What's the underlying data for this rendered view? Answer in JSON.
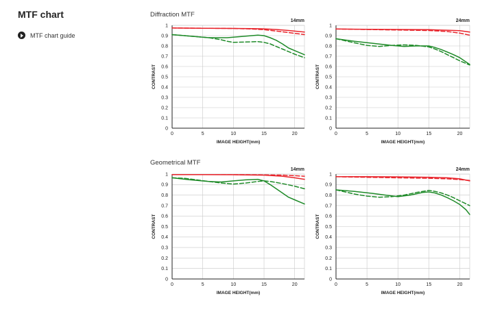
{
  "page": {
    "title": "MTF chart",
    "guide_link": "MTF chart guide"
  },
  "sections": [
    "Diffraction MTF",
    "Geometrical MTF"
  ],
  "colors": {
    "red": "#e8232a",
    "green": "#1e8a28",
    "grid": "#c8c8c8",
    "axis": "#222222"
  },
  "chart_data": [
    {
      "type": "line",
      "section": "Diffraction MTF",
      "focal": "14mm",
      "xlabel": "IMAGE HEIGHT(mm)",
      "ylabel": "CONTRAST",
      "xlim": [
        0,
        21.6
      ],
      "ylim": [
        0,
        1
      ],
      "xticks": [
        0,
        5,
        10,
        15,
        20
      ],
      "yticks": [
        0,
        0.1,
        0.2,
        0.3,
        0.4,
        0.5,
        0.6,
        0.7,
        0.8,
        0.9,
        1
      ],
      "series": [
        {
          "color": "red",
          "dash": false,
          "x": [
            0,
            5,
            10,
            13,
            15,
            17,
            19,
            21.6
          ],
          "y": [
            0.975,
            0.972,
            0.97,
            0.968,
            0.966,
            0.96,
            0.95,
            0.935
          ]
        },
        {
          "color": "red",
          "dash": true,
          "x": [
            0,
            5,
            10,
            13,
            15,
            17,
            19,
            21.6
          ],
          "y": [
            0.975,
            0.972,
            0.97,
            0.965,
            0.958,
            0.945,
            0.93,
            0.91
          ]
        },
        {
          "color": "green",
          "dash": false,
          "x": [
            0,
            3,
            6,
            9,
            12,
            14,
            15,
            16,
            17,
            18,
            19,
            20,
            21.6
          ],
          "y": [
            0.91,
            0.895,
            0.88,
            0.88,
            0.895,
            0.905,
            0.9,
            0.88,
            0.855,
            0.82,
            0.78,
            0.755,
            0.715
          ]
        },
        {
          "color": "green",
          "dash": true,
          "x": [
            0,
            3,
            6,
            8,
            9,
            10,
            12,
            14,
            15,
            16,
            17,
            18,
            19,
            20,
            21.6
          ],
          "y": [
            0.91,
            0.895,
            0.88,
            0.86,
            0.845,
            0.835,
            0.838,
            0.842,
            0.835,
            0.82,
            0.795,
            0.77,
            0.745,
            0.72,
            0.685
          ]
        }
      ]
    },
    {
      "type": "line",
      "section": "Diffraction MTF",
      "focal": "24mm",
      "xlabel": "IMAGE HEIGHT(mm)",
      "ylabel": "CONTRAST",
      "xlim": [
        0,
        21.6
      ],
      "ylim": [
        0,
        1
      ],
      "xticks": [
        0,
        5,
        10,
        15,
        20
      ],
      "yticks": [
        0,
        0.1,
        0.2,
        0.3,
        0.4,
        0.5,
        0.6,
        0.7,
        0.8,
        0.9,
        1
      ],
      "series": [
        {
          "color": "red",
          "dash": false,
          "x": [
            0,
            5,
            10,
            15,
            18,
            20,
            21.6
          ],
          "y": [
            0.965,
            0.962,
            0.96,
            0.958,
            0.953,
            0.948,
            0.935
          ]
        },
        {
          "color": "red",
          "dash": true,
          "x": [
            0,
            5,
            10,
            15,
            18,
            20,
            21.6
          ],
          "y": [
            0.965,
            0.96,
            0.955,
            0.95,
            0.94,
            0.925,
            0.905
          ]
        },
        {
          "color": "green",
          "dash": false,
          "x": [
            0,
            3,
            6,
            9,
            11,
            13,
            15,
            16,
            17,
            18,
            19,
            20,
            21.6
          ],
          "y": [
            0.87,
            0.845,
            0.825,
            0.805,
            0.795,
            0.8,
            0.8,
            0.785,
            0.765,
            0.74,
            0.715,
            0.685,
            0.62
          ]
        },
        {
          "color": "green",
          "dash": true,
          "x": [
            0,
            3,
            5,
            7,
            9,
            11,
            13,
            15,
            16,
            17,
            18,
            19,
            20,
            21.6
          ],
          "y": [
            0.87,
            0.83,
            0.805,
            0.795,
            0.805,
            0.81,
            0.805,
            0.79,
            0.77,
            0.745,
            0.715,
            0.685,
            0.655,
            0.615
          ]
        }
      ]
    },
    {
      "type": "line",
      "section": "Geometrical MTF",
      "focal": "14mm",
      "xlabel": "IMAGE HEIGHT(mm)",
      "ylabel": "CONTRAST",
      "xlim": [
        0,
        21.6
      ],
      "ylim": [
        0,
        1
      ],
      "xticks": [
        0,
        5,
        10,
        15,
        20
      ],
      "yticks": [
        0,
        0.1,
        0.2,
        0.3,
        0.4,
        0.5,
        0.6,
        0.7,
        0.8,
        0.9,
        1
      ],
      "series": [
        {
          "color": "red",
          "dash": false,
          "x": [
            0,
            5,
            10,
            15,
            18,
            20,
            21.6
          ],
          "y": [
            0.995,
            0.995,
            0.994,
            0.99,
            0.98,
            0.965,
            0.95
          ]
        },
        {
          "color": "red",
          "dash": true,
          "x": [
            0,
            5,
            10,
            15,
            18,
            20,
            21.6
          ],
          "y": [
            0.995,
            0.995,
            0.995,
            0.993,
            0.99,
            0.985,
            0.98
          ]
        },
        {
          "color": "green",
          "dash": false,
          "x": [
            0,
            3,
            6,
            8,
            10,
            12,
            14,
            15,
            16,
            17,
            18,
            19,
            20,
            21.6
          ],
          "y": [
            0.965,
            0.945,
            0.93,
            0.925,
            0.935,
            0.945,
            0.95,
            0.935,
            0.9,
            0.86,
            0.82,
            0.78,
            0.755,
            0.715
          ]
        },
        {
          "color": "green",
          "dash": true,
          "x": [
            0,
            2,
            4,
            6,
            8,
            10,
            12,
            14,
            15,
            16,
            18,
            20,
            21.6
          ],
          "y": [
            0.965,
            0.96,
            0.945,
            0.93,
            0.915,
            0.905,
            0.915,
            0.93,
            0.935,
            0.93,
            0.91,
            0.885,
            0.86
          ]
        }
      ]
    },
    {
      "type": "line",
      "section": "Geometrical MTF",
      "focal": "24mm",
      "xlabel": "IMAGE HEIGHT(mm)",
      "ylabel": "CONTRAST",
      "xlim": [
        0,
        21.6
      ],
      "ylim": [
        0,
        1
      ],
      "xticks": [
        0,
        5,
        10,
        15,
        20
      ],
      "yticks": [
        0,
        0.1,
        0.2,
        0.3,
        0.4,
        0.5,
        0.6,
        0.7,
        0.8,
        0.9,
        1
      ],
      "series": [
        {
          "color": "red",
          "dash": false,
          "x": [
            0,
            5,
            10,
            15,
            18,
            20,
            21.6
          ],
          "y": [
            0.975,
            0.975,
            0.974,
            0.97,
            0.965,
            0.955,
            0.935
          ]
        },
        {
          "color": "red",
          "dash": true,
          "x": [
            0,
            5,
            10,
            15,
            18,
            20,
            21.6
          ],
          "y": [
            0.975,
            0.97,
            0.965,
            0.96,
            0.955,
            0.948,
            0.94
          ]
        },
        {
          "color": "green",
          "dash": false,
          "x": [
            0,
            3,
            6,
            8,
            10,
            12,
            14,
            15,
            16,
            17,
            18,
            19,
            20,
            21,
            21.6
          ],
          "y": [
            0.85,
            0.835,
            0.815,
            0.8,
            0.785,
            0.8,
            0.825,
            0.83,
            0.82,
            0.8,
            0.775,
            0.745,
            0.71,
            0.66,
            0.615
          ]
        },
        {
          "color": "green",
          "dash": true,
          "x": [
            0,
            3,
            5,
            7,
            9,
            11,
            13,
            15,
            16,
            17,
            18,
            19,
            20,
            21.6
          ],
          "y": [
            0.85,
            0.81,
            0.79,
            0.78,
            0.785,
            0.8,
            0.825,
            0.845,
            0.835,
            0.82,
            0.8,
            0.775,
            0.745,
            0.7
          ]
        }
      ]
    }
  ]
}
